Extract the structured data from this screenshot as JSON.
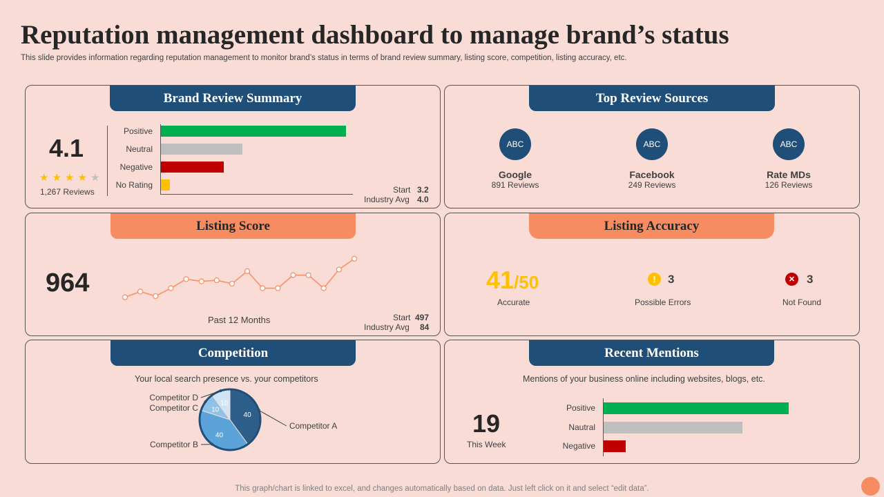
{
  "title": "Reputation management dashboard to manage brand’s status",
  "subtitle": "This slide provides information regarding reputation management to monitor brand’s status in terms of brand review summary, listing score, competition, listing accuracy, etc.",
  "footer": "This graph/chart is linked to excel,  and changes automatically based on data. Just left click on it and select “edit data”.",
  "colors": {
    "navy": "#1f4e79",
    "orange": "#f78c60",
    "green": "#00b050",
    "gray": "#bfbfbf",
    "red": "#c00000",
    "yellow": "#ffc000"
  },
  "brand_review": {
    "header": "Brand Review Summary",
    "score": "4.1",
    "stars_filled": 4,
    "stars_total": 5,
    "reviews": "1,267 Reviews",
    "start_label": "Start",
    "start_value": "3.2",
    "industry_label": "Industry Avg",
    "industry_value": "4.0"
  },
  "top_sources": {
    "header": "Top Review Sources",
    "items": [
      {
        "logo": "ABC",
        "name": "Google",
        "reviews": "891 Reviews"
      },
      {
        "logo": "ABC",
        "name": "Facebook",
        "reviews": "249 Reviews"
      },
      {
        "logo": "ABC",
        "name": "Rate MDs",
        "reviews": "126 Reviews"
      }
    ]
  },
  "listing_score": {
    "header": "Listing Score",
    "score": "964",
    "period": "Past 12 Months",
    "start_label": "Start",
    "start_value": "497",
    "industry_label": "Industry Avg",
    "industry_value": "84"
  },
  "listing_accuracy": {
    "header": "Listing Accuracy",
    "accurate_value": "41",
    "accurate_total": "/50",
    "accurate_label": "Accurate",
    "errors_icon": "!",
    "errors_value": "3",
    "errors_label": "Possible Errors",
    "notfound_icon": "✕",
    "notfound_value": "3",
    "notfound_label": "Not Found"
  },
  "competition": {
    "header": "Competition",
    "subtitle": "Your local search presence vs.  your competitors"
  },
  "recent_mentions": {
    "header": "Recent Mentions",
    "subtitle": "Mentions of your business online including websites, blogs, etc.",
    "count": "19",
    "count_label": "This Week"
  },
  "chart_data": [
    {
      "type": "bar",
      "title": "Brand Review Summary",
      "orientation": "horizontal",
      "categories": [
        "Positive",
        "Neutral",
        "Negative",
        "No Rating"
      ],
      "values": [
        100,
        44,
        34,
        5
      ],
      "colors": [
        "#00b050",
        "#bfbfbf",
        "#c00000",
        "#ffc000"
      ],
      "xlim": [
        0,
        100
      ]
    },
    {
      "type": "line",
      "title": "Listing Score",
      "x": [
        1,
        2,
        3,
        4,
        5,
        6,
        7,
        8,
        9,
        10,
        11,
        12,
        13,
        14,
        15,
        16
      ],
      "values": [
        20,
        30,
        22,
        36,
        52,
        48,
        50,
        44,
        66,
        36,
        36,
        59,
        59,
        36,
        69,
        88
      ],
      "ylim": [
        0,
        100
      ]
    },
    {
      "type": "pie",
      "title": "Competition",
      "labels": [
        "Competitor A",
        "Competitor B",
        "Competitor C",
        "Competitor D"
      ],
      "values": [
        40,
        40,
        10,
        10
      ],
      "colors": [
        "#2e5f8a",
        "#5ba3d9",
        "#8fc2e8",
        "#cfe5f5"
      ]
    },
    {
      "type": "bar",
      "title": "Recent Mentions",
      "orientation": "horizontal",
      "categories": [
        "Positive",
        "Nautral",
        "Negative"
      ],
      "values": [
        100,
        75,
        12
      ],
      "colors": [
        "#00b050",
        "#bfbfbf",
        "#c00000"
      ],
      "xlim": [
        0,
        100
      ]
    }
  ]
}
